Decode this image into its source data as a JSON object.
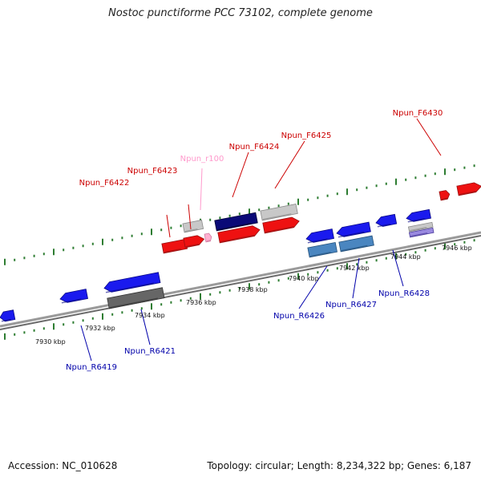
{
  "title": "Nostoc punctiforme PCC 73102, complete genome",
  "footer": {
    "accession": "Accession: NC_010628",
    "summary": "Topology: circular; Length: 8,234,322 bp; Genes: 6,187"
  },
  "colors": {
    "forward_label": "#cc0000",
    "reverse_label": "#0000aa",
    "rna_label": "#ff99cc",
    "tick": "#2e7d32",
    "backbone": "#888888"
  },
  "axis": {
    "ticks": [
      {
        "label": "7930 kbp"
      },
      {
        "label": "7932 kbp"
      },
      {
        "label": "7934 kbp"
      },
      {
        "label": "7936 kbp"
      },
      {
        "label": "7938 kbp"
      },
      {
        "label": "7940 kbp"
      },
      {
        "label": "7942 kbp"
      },
      {
        "label": "7944 kbp"
      },
      {
        "label": "7946 kbp"
      }
    ]
  },
  "genes": [
    {
      "name": "Npun_F6422",
      "strand": "forward",
      "kind": "gene"
    },
    {
      "name": "Npun_F6423",
      "strand": "forward",
      "kind": "gene"
    },
    {
      "name": "Npun_r100",
      "strand": "forward",
      "kind": "rna"
    },
    {
      "name": "Npun_F6424",
      "strand": "forward",
      "kind": "gene"
    },
    {
      "name": "Npun_F6425",
      "strand": "forward",
      "kind": "gene"
    },
    {
      "name": "Npun_F6430",
      "strand": "forward",
      "kind": "gene"
    },
    {
      "name": "Npun_R6419",
      "strand": "reverse",
      "kind": "gene"
    },
    {
      "name": "Npun_R6421",
      "strand": "reverse",
      "kind": "gene"
    },
    {
      "name": "Npun_R6426",
      "strand": "reverse",
      "kind": "gene"
    },
    {
      "name": "Npun_R6427",
      "strand": "reverse",
      "kind": "gene"
    },
    {
      "name": "Npun_R6428",
      "strand": "reverse",
      "kind": "gene"
    }
  ]
}
